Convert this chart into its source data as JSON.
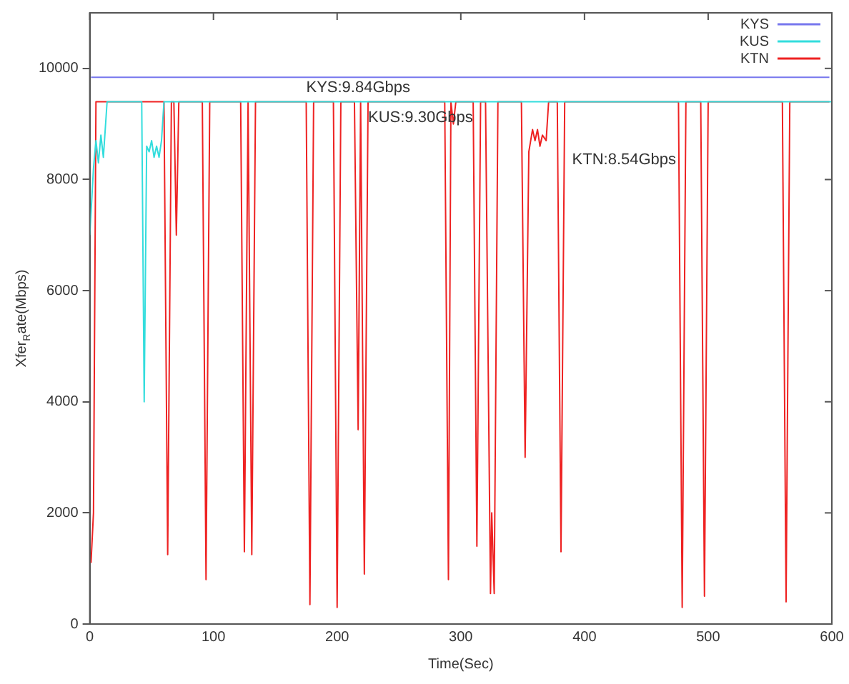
{
  "chart_data": {
    "type": "line",
    "xlabel": "Time(Sec)",
    "ylabel": "Xfer$_{R}$ate(Mbps)",
    "xlim": [
      0,
      600
    ],
    "xticks": [
      0,
      100,
      200,
      300,
      400,
      500,
      600
    ],
    "ylim": [
      0,
      11000
    ],
    "yticks": [
      0,
      2000,
      4000,
      6000,
      8000,
      10000
    ],
    "grid": false,
    "legend": "top right",
    "marker": "none",
    "line_style": "solid",
    "series": [
      {
        "name": "KYS",
        "color": "#7777ee",
        "x": [
          1,
          598
        ],
        "values": [
          9840,
          9840
        ]
      },
      {
        "name": "KUS",
        "color": "#33dddd",
        "x": [
          0,
          3,
          5,
          7,
          9,
          11,
          14,
          42,
          44,
          46,
          48,
          50,
          52,
          54,
          56,
          58,
          60,
          600
        ],
        "values": [
          7000,
          8200,
          8700,
          8300,
          8800,
          8400,
          9400,
          9400,
          4000,
          8600,
          8500,
          8700,
          8400,
          8600,
          8400,
          8700,
          9400,
          9400
        ]
      },
      {
        "name": "KTN",
        "color": "#ee2222",
        "x": [
          1,
          3,
          5,
          60,
          63,
          66,
          68,
          70,
          72,
          91,
          94,
          97,
          122,
          125,
          128,
          131,
          134,
          175,
          178,
          181,
          197,
          200,
          203,
          214,
          217,
          219,
          222,
          225,
          287,
          290,
          292,
          294,
          296,
          310,
          313,
          316,
          320,
          324,
          325,
          327,
          330,
          349,
          352,
          355,
          358,
          360,
          362,
          364,
          366,
          369,
          371,
          378,
          381,
          384,
          476,
          479,
          482,
          494,
          497,
          500,
          560,
          563,
          566,
          598
        ],
        "values": [
          1100,
          2000,
          9400,
          9400,
          1250,
          9400,
          9400,
          7000,
          9400,
          9400,
          800,
          9400,
          9400,
          1300,
          9400,
          1250,
          9400,
          9400,
          350,
          9400,
          9400,
          300,
          9400,
          9400,
          3500,
          9400,
          900,
          9400,
          9400,
          800,
          9400,
          9000,
          9400,
          9400,
          1400,
          9400,
          9400,
          550,
          2000,
          550,
          9400,
          9400,
          3000,
          8500,
          8900,
          8700,
          8900,
          8600,
          8800,
          8700,
          9400,
          9400,
          1300,
          9400,
          9400,
          300,
          9400,
          9400,
          500,
          9400,
          9400,
          400,
          9400,
          9400
        ]
      }
    ],
    "annotations": [
      {
        "text": "KYS:9.84Gbps",
        "x": 175,
        "y": 9840
      },
      {
        "text": "KUS:9.30Gbps",
        "x": 225,
        "y": 9300
      },
      {
        "text": "KTN:8.54Gbps",
        "x": 390,
        "y": 8540
      }
    ]
  }
}
